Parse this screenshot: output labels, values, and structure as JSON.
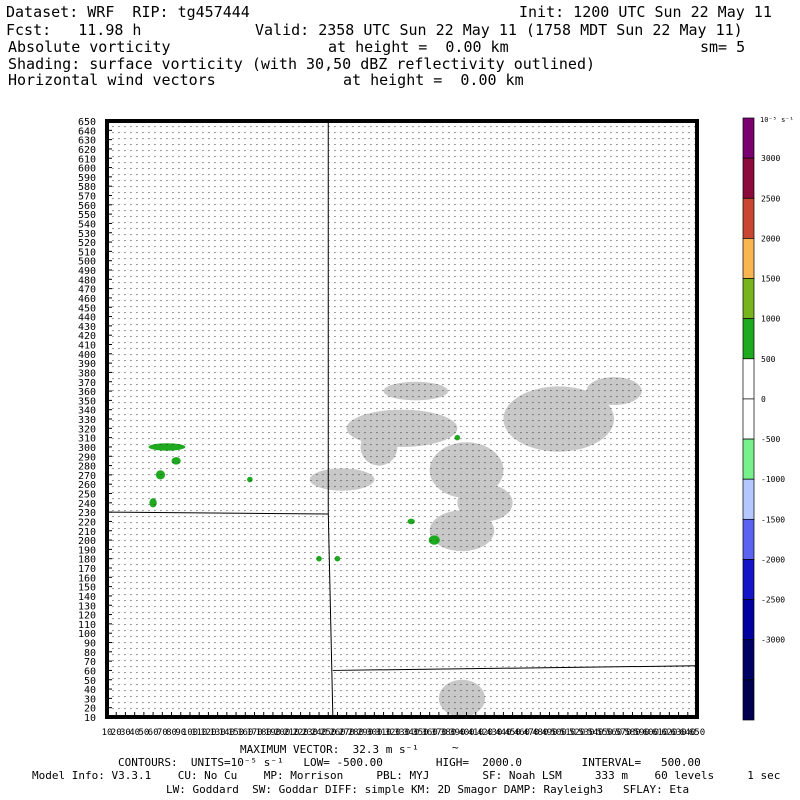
{
  "header": {
    "dataset": "Dataset: WRF  RIP: tg457444",
    "init": "Init: 1200 UTC Sun 22 May 11",
    "fcst": "Fcst:   11.98 h",
    "valid": "Valid: 2358 UTC Sun 22 May 11 (1758 MDT Sun 22 May 11)",
    "field": "Absolute vorticity",
    "field_height": "at height =  0.00 km",
    "smoothing": "sm= 5",
    "shading": "Shading: surface vorticity (with 30,50 dBZ reflectivity outlined)",
    "vectors": "Horizontal wind vectors",
    "vectors_height": "at height =  0.00 km"
  },
  "footer": {
    "max_vector": "MAXIMUM VECTOR:  32.3 m s⁻¹",
    "contours": "CONTOURS:  UNITS=10⁻⁵ s⁻¹   LOW= -500.00        HIGH=  2000.0         INTERVAL=   500.00",
    "model_info": "Model Info: V3.3.1    CU: No Cu    MP: Morrison     PBL: MYJ        SF: Noah LSM     333 m    60 levels     1 sec",
    "model_info2": "LW: Goddard  SW: Goddar DIFF: simple KM: 2D Smagor DAMP: Rayleigh3   SFLAY: Eta"
  },
  "chart_data": {
    "type": "heatmap",
    "x_ticks": [
      10,
      20,
      30,
      40,
      50,
      60,
      70,
      80,
      90,
      100,
      110,
      120,
      130,
      140,
      150,
      160,
      170,
      180,
      190,
      200,
      210,
      220,
      230,
      240,
      250,
      260,
      270,
      280,
      290,
      300,
      310,
      320,
      330,
      340,
      350,
      360,
      370,
      380,
      390,
      400,
      410,
      420,
      430,
      440,
      450,
      460,
      470,
      480,
      490,
      500,
      510,
      520,
      530,
      540,
      550,
      560,
      570,
      580,
      590,
      600,
      610,
      620,
      630,
      640,
      650
    ],
    "y_ticks": [
      10,
      20,
      30,
      40,
      50,
      60,
      70,
      80,
      90,
      100,
      110,
      120,
      130,
      140,
      150,
      160,
      170,
      180,
      190,
      200,
      210,
      220,
      230,
      240,
      250,
      260,
      270,
      280,
      290,
      300,
      310,
      320,
      330,
      340,
      350,
      360,
      370,
      380,
      390,
      400,
      410,
      420,
      430,
      440,
      450,
      460,
      470,
      480,
      490,
      500,
      510,
      520,
      530,
      540,
      550,
      560,
      570,
      580,
      590,
      600,
      610,
      620,
      630,
      640,
      650
    ],
    "xlim": [
      10,
      650
    ],
    "ylim": [
      10,
      650
    ],
    "colorbar": {
      "units_label": "10⁻⁵ s⁻¹",
      "levels": [
        {
          "value": 3000,
          "color": "#7a0070"
        },
        {
          "value": 2500,
          "color": "#8c0a3c"
        },
        {
          "value": 2000,
          "color": "#c84632"
        },
        {
          "value": 1500,
          "color": "#fab450"
        },
        {
          "value": 1000,
          "color": "#78b41e"
        },
        {
          "value": 500,
          "color": "#1eaa1e"
        },
        {
          "value": 0,
          "color": "#ffffff"
        },
        {
          "value": -500,
          "color": "#ffffff"
        },
        {
          "value": -1000,
          "color": "#78f08c"
        },
        {
          "value": -1500,
          "color": "#b4c8ff"
        },
        {
          "value": -2000,
          "color": "#5a64f0"
        },
        {
          "value": -2500,
          "color": "#1414c8"
        },
        {
          "value": -3000,
          "color": "#0000a0"
        },
        {
          "value": null,
          "color": "#000064"
        },
        {
          "value": null,
          "color": "#000050"
        }
      ]
    },
    "reflectivity_regions": [
      {
        "x": 330,
        "y": 320,
        "rx": 60,
        "ry": 20
      },
      {
        "x": 400,
        "y": 275,
        "rx": 40,
        "ry": 30
      },
      {
        "x": 420,
        "y": 240,
        "rx": 30,
        "ry": 20
      },
      {
        "x": 500,
        "y": 330,
        "rx": 60,
        "ry": 35
      },
      {
        "x": 560,
        "y": 360,
        "rx": 30,
        "ry": 15
      },
      {
        "x": 305,
        "y": 300,
        "rx": 20,
        "ry": 20
      },
      {
        "x": 265,
        "y": 265,
        "rx": 35,
        "ry": 12
      },
      {
        "x": 395,
        "y": 210,
        "rx": 35,
        "ry": 22
      },
      {
        "x": 395,
        "y": 30,
        "rx": 25,
        "ry": 20
      },
      {
        "x": 345,
        "y": 360,
        "rx": 35,
        "ry": 10
      }
    ],
    "vorticity_spots": [
      {
        "x": 75,
        "y": 300,
        "rx": 20,
        "ry": 4
      },
      {
        "x": 68,
        "y": 270,
        "rx": 5,
        "ry": 5
      },
      {
        "x": 85,
        "y": 285,
        "rx": 5,
        "ry": 4
      },
      {
        "x": 60,
        "y": 240,
        "rx": 4,
        "ry": 5
      },
      {
        "x": 365,
        "y": 200,
        "rx": 6,
        "ry": 5
      },
      {
        "x": 340,
        "y": 220,
        "rx": 4,
        "ry": 3
      },
      {
        "x": 240,
        "y": 180,
        "rx": 3,
        "ry": 3
      },
      {
        "x": 260,
        "y": 180,
        "rx": 3,
        "ry": 3
      },
      {
        "x": 390,
        "y": 310,
        "rx": 3,
        "ry": 3
      },
      {
        "x": 165,
        "y": 265,
        "rx": 3,
        "ry": 3
      }
    ],
    "boundaries": [
      {
        "points": [
          [
            250,
            650
          ],
          [
            250,
            230
          ],
          [
            255,
            10
          ]
        ]
      },
      {
        "points": [
          [
            10,
            230
          ],
          [
            250,
            228
          ]
        ]
      },
      {
        "points": [
          [
            255,
            60
          ],
          [
            650,
            65
          ]
        ]
      }
    ],
    "max_vector_ms": 32.3
  }
}
